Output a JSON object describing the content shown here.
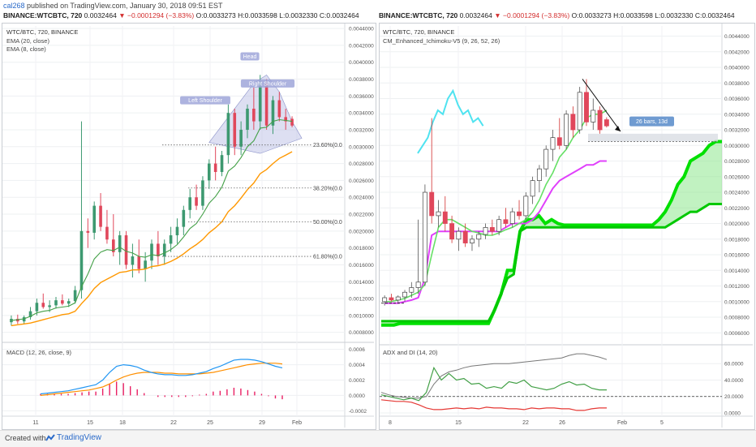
{
  "header": {
    "author": "cal268",
    "published": "published on TradingView.com, January 30, 2018 09:51 EST"
  },
  "quote": {
    "symbol": "BINANCE:WTCBTC, 720",
    "price": "0.0032464",
    "change": "−0.0001294 (−3.83%)",
    "o_label": "O:",
    "o": "0.0033273",
    "h_label": "H:",
    "h": "0.0033598",
    "l_label": "L:",
    "l": "0.0032330",
    "c_label": "C:",
    "c": "0.0032464"
  },
  "left_panel": {
    "title": "WTC/BTC, 720, BINANCE",
    "studies": [
      "EMA (20, close)",
      "EMA (8, close)"
    ],
    "pattern_labels": [
      "Head",
      "Right Shoulder",
      "Left Shoulder"
    ],
    "fib_levels": [
      "23.60%(0.0",
      "38.20%(0.0",
      "50.00%(0.0",
      "61.80%(0.0"
    ],
    "macd_title": "MACD (12, 26, close, 9)",
    "x_ticks": [
      "11",
      "15",
      "18",
      "22",
      "25",
      "29",
      "Feb"
    ]
  },
  "right_panel": {
    "title": "WTC/BTC, 720, BINANCE",
    "study": "CM_Enhanced_Ichimoku-V5 (9, 26, 52, 26)",
    "measure_label": "26 bars, 13d",
    "adx_title": "ADX and DI (14, 20)",
    "x_ticks": [
      "8",
      "15",
      "22",
      "26",
      "Feb",
      "5"
    ]
  },
  "chart_data": [
    {
      "type": "candlestick",
      "title": "WTC/BTC, 720, BINANCE",
      "y_axis_ticks": [
        "0.0044000",
        "0.0042000",
        "0.0040000",
        "0.0038000",
        "0.0036000",
        "0.0034000",
        "0.0032000",
        "0.0030000",
        "0.0028000",
        "0.0026000",
        "0.0024000",
        "0.0022000",
        "0.0020000",
        "0.0018000",
        "0.0016000",
        "0.0014000",
        "0.0012000",
        "0.0010000",
        "0.0008000"
      ],
      "ylim": [
        0.00072,
        0.00443
      ],
      "x_ticks": [
        "11",
        "15",
        "18",
        "22",
        "25",
        "29",
        "Feb"
      ],
      "ohlc": [
        [
          0.00092,
          0.001,
          0.00088,
          0.00096
        ],
        [
          0.00096,
          0.00101,
          0.0009,
          0.00093
        ],
        [
          0.00093,
          0.001,
          0.0009,
          0.00098
        ],
        [
          0.00098,
          0.0011,
          0.00095,
          0.00105
        ],
        [
          0.00105,
          0.0012,
          0.001,
          0.00115
        ],
        [
          0.00115,
          0.00126,
          0.00108,
          0.0011
        ],
        [
          0.0011,
          0.00118,
          0.00104,
          0.00112
        ],
        [
          0.00112,
          0.00122,
          0.00108,
          0.00118
        ],
        [
          0.00118,
          0.00125,
          0.00112,
          0.00114
        ],
        [
          0.00114,
          0.0012,
          0.0011,
          0.00117
        ],
        [
          0.00117,
          0.00135,
          0.00114,
          0.0013
        ],
        [
          0.0013,
          0.0033,
          0.0012,
          0.002
        ],
        [
          0.002,
          0.00215,
          0.0018,
          0.00198
        ],
        [
          0.00198,
          0.00235,
          0.0019,
          0.0023
        ],
        [
          0.0023,
          0.00245,
          0.002,
          0.00205
        ],
        [
          0.00205,
          0.00225,
          0.00185,
          0.0019
        ],
        [
          0.0019,
          0.0022,
          0.0017,
          0.00175
        ],
        [
          0.00175,
          0.002,
          0.0016,
          0.00195
        ],
        [
          0.00195,
          0.002,
          0.00155,
          0.0016
        ],
        [
          0.0016,
          0.00185,
          0.00145,
          0.0017
        ],
        [
          0.0017,
          0.0019,
          0.0015,
          0.00155
        ],
        [
          0.00155,
          0.00175,
          0.0014,
          0.00165
        ],
        [
          0.00165,
          0.0019,
          0.00155,
          0.00185
        ],
        [
          0.00185,
          0.002,
          0.0016,
          0.0017
        ],
        [
          0.0017,
          0.0019,
          0.0016,
          0.00185
        ],
        [
          0.00185,
          0.00205,
          0.00175,
          0.00195
        ],
        [
          0.00195,
          0.00215,
          0.00185,
          0.00205
        ],
        [
          0.00205,
          0.0023,
          0.00195,
          0.00225
        ],
        [
          0.00225,
          0.0025,
          0.00215,
          0.0024
        ],
        [
          0.0024,
          0.00255,
          0.00225,
          0.0023
        ],
        [
          0.0023,
          0.00265,
          0.00225,
          0.0026
        ],
        [
          0.0026,
          0.00285,
          0.0025,
          0.0028
        ],
        [
          0.0028,
          0.003,
          0.0026,
          0.0027
        ],
        [
          0.0027,
          0.00295,
          0.00265,
          0.0029
        ],
        [
          0.0029,
          0.0035,
          0.0028,
          0.0034
        ],
        [
          0.0034,
          0.00345,
          0.0029,
          0.003
        ],
        [
          0.003,
          0.0033,
          0.0029,
          0.0032
        ],
        [
          0.0032,
          0.0035,
          0.0031,
          0.00345
        ],
        [
          0.00345,
          0.0037,
          0.0032,
          0.0033
        ],
        [
          0.0033,
          0.00385,
          0.0032,
          0.00375
        ],
        [
          0.00375,
          0.0038,
          0.0032,
          0.00325
        ],
        [
          0.00325,
          0.0036,
          0.00315,
          0.00355
        ],
        [
          0.00355,
          0.00365,
          0.0033,
          0.00335
        ],
        [
          0.00335,
          0.00345,
          0.0032,
          0.0033
        ],
        [
          0.00333,
          0.00336,
          0.00323,
          0.00325
        ]
      ],
      "ema_8": [
        0.00094,
        0.00095,
        0.00096,
        0.00099,
        0.00103,
        0.00105,
        0.00106,
        0.00109,
        0.0011,
        0.00111,
        0.00115,
        0.00134,
        0.00149,
        0.00167,
        0.00175,
        0.00178,
        0.00177,
        0.00181,
        0.00176,
        0.00174,
        0.0017,
        0.00169,
        0.00172,
        0.00171,
        0.00174,
        0.00178,
        0.00184,
        0.00193,
        0.00203,
        0.00209,
        0.0022,
        0.00233,
        0.00241,
        0.00252,
        0.00271,
        0.00277,
        0.00287,
        0.003,
        0.00307,
        0.00322,
        0.00323,
        0.0033,
        0.00332,
        0.00331,
        0.0033
      ],
      "ema_20": [
        0.00088,
        0.00089,
        0.0009,
        0.00091,
        0.00093,
        0.00095,
        0.00097,
        0.00099,
        0.00101,
        0.00102,
        0.00105,
        0.00114,
        0.00122,
        0.00132,
        0.00139,
        0.00143,
        0.00147,
        0.00151,
        0.00152,
        0.00154,
        0.00154,
        0.00155,
        0.00158,
        0.00159,
        0.00161,
        0.00164,
        0.00168,
        0.00173,
        0.00179,
        0.00184,
        0.0019,
        0.00198,
        0.00204,
        0.00211,
        0.00223,
        0.0023,
        0.00239,
        0.00249,
        0.00257,
        0.00268,
        0.00273,
        0.0028,
        0.00286,
        0.0029,
        0.00294
      ],
      "fib_values": [
        0.00302,
        0.00251,
        0.00211,
        0.0017
      ]
    },
    {
      "type": "line",
      "title": "MACD (12, 26, close, 9)",
      "y_axis_ticks": [
        "0.0006",
        "0.0004",
        "0.0002",
        "0.0000",
        "-0.0002"
      ],
      "ylim": [
        -0.00026,
        0.00066
      ],
      "series": [
        {
          "values": [
            2e-05,
            3e-05,
            4e-05,
            5e-05,
            6e-05,
            8e-05,
            0.0001,
            0.00012,
            0.00014,
            0.0002,
            0.0003,
            0.00038,
            0.0004,
            0.00039,
            0.00037,
            0.00033,
            0.0003,
            0.00028,
            0.00027,
            0.00027,
            0.00026,
            0.00026,
            0.00027,
            0.00029,
            0.00031,
            0.00035,
            0.00038,
            0.00042,
            0.00046,
            0.00047,
            0.00047,
            0.00046,
            0.00044,
            0.00041,
            0.00038,
            0.00036
          ]
        },
        {
          "values": [
            0.0,
            1e-05,
            2e-05,
            3e-05,
            4e-05,
            5e-05,
            6e-05,
            7e-05,
            9e-05,
            0.00011,
            0.00015,
            0.0002,
            0.00024,
            0.00027,
            0.00029,
            0.0003,
            0.0003,
            0.0003,
            0.00029,
            0.00029,
            0.00028,
            0.00028,
            0.00028,
            0.00028,
            0.00029,
            0.0003,
            0.00032,
            0.00034,
            0.00036,
            0.00038,
            0.0004,
            0.00041,
            0.00042,
            0.00042,
            0.00042,
            0.00041
          ]
        },
        {
          "values": [
            2e-05,
            2e-05,
            2e-05,
            2e-05,
            2e-05,
            3e-05,
            4e-05,
            5e-05,
            5e-05,
            9e-05,
            0.00015,
            0.00018,
            0.00016,
            0.00012,
            8e-05,
            3e-05,
            0.0,
            -2e-05,
            -2e-05,
            -2e-05,
            -2e-05,
            -2e-05,
            -1e-05,
            1e-05,
            2e-05,
            5e-05,
            6e-05,
            8e-05,
            0.0001,
            9e-05,
            7e-05,
            5e-05,
            2e-05,
            -1e-05,
            -4e-05,
            -5e-05
          ]
        }
      ],
      "colors": [
        "#2196f3",
        "#ff8f00",
        "#e91e63"
      ]
    },
    {
      "type": "candlestick",
      "title": "WTC/BTC, 720, BINANCE",
      "y_axis_ticks": [
        "0.0044000",
        "0.0042000",
        "0.0040000",
        "0.0038000",
        "0.0036000",
        "0.0034000",
        "0.0032000",
        "0.0030000",
        "0.0028000",
        "0.0026000",
        "0.0024000",
        "0.0022000",
        "0.0020000",
        "0.0018000",
        "0.0016000",
        "0.0014000",
        "0.0012000",
        "0.0010000",
        "0.0008000",
        "0.0006000"
      ],
      "ylim": [
        0.00052,
        0.00453
      ],
      "x_ticks": [
        "8",
        "15",
        "22",
        "26",
        "Feb",
        "5"
      ],
      "ohlc": [
        [
          0.001,
          0.00108,
          0.00095,
          0.00105
        ],
        [
          0.00105,
          0.0011,
          0.001,
          0.00102
        ],
        [
          0.00102,
          0.00108,
          0.00098,
          0.00106
        ],
        [
          0.00106,
          0.00115,
          0.001,
          0.00112
        ],
        [
          0.00112,
          0.00125,
          0.00105,
          0.00118
        ],
        [
          0.00118,
          0.00205,
          0.0011,
          0.00125
        ],
        [
          0.00125,
          0.0025,
          0.0012,
          0.0024
        ],
        [
          0.0024,
          0.00335,
          0.002,
          0.0021
        ],
        [
          0.0021,
          0.0023,
          0.00195,
          0.00215
        ],
        [
          0.00215,
          0.00235,
          0.0019,
          0.002
        ],
        [
          0.002,
          0.0021,
          0.00175,
          0.0018
        ],
        [
          0.0018,
          0.00195,
          0.00165,
          0.0019
        ],
        [
          0.0019,
          0.002,
          0.0017,
          0.00175
        ],
        [
          0.00175,
          0.00185,
          0.00165,
          0.0018
        ],
        [
          0.0018,
          0.0019,
          0.0017,
          0.00186
        ],
        [
          0.00186,
          0.002,
          0.0018,
          0.00195
        ],
        [
          0.00195,
          0.00205,
          0.00185,
          0.0019
        ],
        [
          0.0019,
          0.0021,
          0.00185,
          0.00205
        ],
        [
          0.00205,
          0.0022,
          0.00195,
          0.002
        ],
        [
          0.002,
          0.0022,
          0.00195,
          0.00215
        ],
        [
          0.00215,
          0.0023,
          0.00205,
          0.0021
        ],
        [
          0.0021,
          0.0024,
          0.00205,
          0.00235
        ],
        [
          0.00235,
          0.0026,
          0.00225,
          0.00255
        ],
        [
          0.00255,
          0.00275,
          0.0024,
          0.0027
        ],
        [
          0.0027,
          0.003,
          0.0026,
          0.00295
        ],
        [
          0.00295,
          0.0032,
          0.0028,
          0.0031
        ],
        [
          0.0031,
          0.00335,
          0.00295,
          0.003
        ],
        [
          0.003,
          0.00345,
          0.00295,
          0.0034
        ],
        [
          0.0034,
          0.0035,
          0.0031,
          0.0032
        ],
        [
          0.0032,
          0.00375,
          0.00315,
          0.00368
        ],
        [
          0.00368,
          0.00385,
          0.00325,
          0.0033
        ],
        [
          0.0033,
          0.0036,
          0.0032,
          0.00345
        ],
        [
          0.00345,
          0.0035,
          0.00315,
          0.0032
        ],
        [
          0.00333,
          0.00336,
          0.00323,
          0.00325
        ]
      ],
      "conversion_line": [
        0.001,
        0.001,
        0.00102,
        0.00104,
        0.00108,
        0.00112,
        0.00122,
        0.0016,
        0.00195,
        0.00205,
        0.00205,
        0.002,
        0.00195,
        0.0019,
        0.00188,
        0.00185,
        0.00185,
        0.00188,
        0.00192,
        0.00195,
        0.002,
        0.00205,
        0.00215,
        0.0023,
        0.0025,
        0.00265,
        0.00285,
        0.00295,
        0.0031,
        0.0032,
        0.00335,
        0.0034,
        0.0034,
        0.00345
      ],
      "lagging_span": [
        0.0029,
        0.003,
        0.0031,
        0.0033,
        0.00345,
        0.0034,
        0.0036,
        0.0037,
        0.00352,
        0.0034,
        0.00345,
        0.0033,
        0.00335,
        0.00325
      ],
      "base_line": [
        0.00098,
        0.00098,
        0.00098,
        0.001,
        0.00102,
        0.00105,
        0.0013,
        0.00185,
        0.0019,
        0.0019,
        0.0019,
        0.0019,
        0.0019,
        0.0019,
        0.0019,
        0.0019,
        0.0019,
        0.0019,
        0.00195,
        0.002,
        0.002,
        0.002,
        0.00205,
        0.00215,
        0.0023,
        0.00245,
        0.00255,
        0.0026,
        0.00265,
        0.0027,
        0.00275,
        0.00275,
        0.0028,
        0.0028
      ],
      "senkou_a": [
        0.0007,
        0.0007,
        0.0007,
        0.00072,
        0.00072,
        0.00072,
        0.00072,
        0.00072,
        0.00072,
        0.00072,
        0.00072,
        0.00072,
        0.00072,
        0.00072,
        0.00072,
        0.00072,
        0.00072,
        0.00072,
        0.0009,
        0.0011,
        0.0014,
        0.0014,
        0.0019,
        0.00205,
        0.00205,
        0.0021,
        0.002,
        0.00205,
        0.002,
        0.00198,
        0.00198,
        0.00198,
        0.00198,
        0.00198,
        0.00198,
        0.00198,
        0.00198,
        0.00198,
        0.00198,
        0.00198,
        0.00198,
        0.00198,
        0.00198,
        0.00198,
        0.00205,
        0.00215,
        0.0023,
        0.0025,
        0.0026,
        0.0028,
        0.00285,
        0.0029,
        0.003,
        0.00305,
        0.00305
      ],
      "senkou_b": [
        0.00075,
        0.00075,
        0.00075,
        0.00075,
        0.00075,
        0.00075,
        0.00075,
        0.00075,
        0.00075,
        0.00075,
        0.00075,
        0.00075,
        0.00075,
        0.00075,
        0.00075,
        0.00075,
        0.00075,
        0.00075,
        0.0009,
        0.0011,
        0.0013,
        0.00135,
        0.0019,
        0.00195,
        0.00195,
        0.00195,
        0.00195,
        0.00195,
        0.00195,
        0.00195,
        0.00195,
        0.00195,
        0.00195,
        0.00195,
        0.00195,
        0.00195,
        0.00195,
        0.00195,
        0.00195,
        0.00195,
        0.00195,
        0.00195,
        0.00195,
        0.00195,
        0.00195,
        0.00195,
        0.002,
        0.00205,
        0.0021,
        0.00215,
        0.00215,
        0.0022,
        0.00225,
        0.00225,
        0.00225
      ]
    },
    {
      "type": "line",
      "title": "ADX and DI (14, 20)",
      "y_axis_ticks": [
        "60.0000",
        "40.0000",
        "20.0000",
        "0.0000"
      ],
      "ylim": [
        -2,
        80
      ],
      "threshold": 20,
      "series": [
        {
          "values": [
            25,
            22,
            20,
            19,
            18,
            18,
            20,
            35,
            45,
            50,
            52,
            55,
            57,
            58,
            59,
            60,
            60,
            60,
            61,
            62,
            63,
            64,
            65,
            66,
            67,
            70,
            72,
            72,
            70,
            68,
            65
          ]
        },
        {
          "values": [
            22,
            20,
            18,
            16,
            18,
            15,
            25,
            55,
            40,
            48,
            40,
            42,
            35,
            36,
            30,
            32,
            30,
            38,
            36,
            40,
            32,
            30,
            28,
            30,
            35,
            38,
            34,
            35,
            30,
            28,
            28
          ]
        },
        {
          "values": [
            16,
            15,
            14,
            14,
            13,
            10,
            6,
            4,
            4,
            5,
            6,
            5,
            6,
            5,
            7,
            6,
            6,
            5,
            5,
            4,
            6,
            5,
            6,
            6,
            5,
            5,
            3,
            3,
            5,
            6,
            6
          ]
        }
      ],
      "colors": [
        "#777777",
        "#43a047",
        "#e53935"
      ]
    }
  ]
}
